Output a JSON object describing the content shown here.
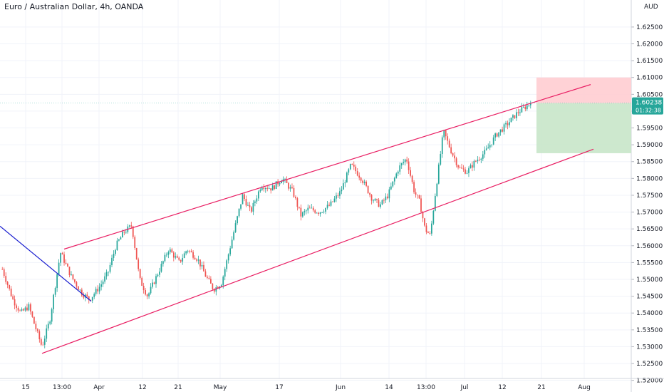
{
  "header": {
    "title": "Euro / Australian Dollar, 4h, OANDA"
  },
  "price_axis": {
    "unit": "AUD"
  },
  "price_tag": {
    "price": "1.60238",
    "countdown": "01:32:38"
  },
  "colors": {
    "up": "#26a69a",
    "down": "#ef5350",
    "channel": "#e91e63",
    "trend": "#1a1ecf",
    "stop_zone": "#ffcdd2",
    "target_zone": "#c8e6c9",
    "tag": "#26a69a",
    "grid": "#f0f3fa",
    "axis": "#131722"
  },
  "chart_data": {
    "type": "candlestick",
    "title": "Euro / Australian Dollar, 4h, OANDA",
    "ylabel": "AUD",
    "ylim": [
      1.5195,
      1.629
    ],
    "grid": true,
    "y_ticks": [
      "1.62500",
      "1.62000",
      "1.61500",
      "1.61000",
      "1.60500",
      "1.60000",
      "1.59500",
      "1.59000",
      "1.58500",
      "1.58000",
      "1.57500",
      "1.57000",
      "1.56500",
      "1.56000",
      "1.55500",
      "1.55000",
      "1.54500",
      "1.54000",
      "1.53500",
      "1.53000",
      "1.52500",
      "1.52000"
    ],
    "x_ticks": [
      "15",
      "13:00",
      "Apr",
      "12",
      "21",
      "May",
      "17",
      "Jun",
      "14",
      "13:00",
      "Jul",
      "12",
      "21",
      "Aug"
    ],
    "price_path": {
      "start": 1.552,
      "end_close": 1.60238,
      "points": [
        [
          0.0,
          1.553
        ],
        [
          0.02,
          1.544
        ],
        [
          0.035,
          1.54
        ],
        [
          0.05,
          1.542
        ],
        [
          0.06,
          1.537
        ],
        [
          0.075,
          1.53
        ],
        [
          0.09,
          1.538
        ],
        [
          0.11,
          1.558
        ],
        [
          0.13,
          1.551
        ],
        [
          0.15,
          1.546
        ],
        [
          0.165,
          1.544
        ],
        [
          0.185,
          1.548
        ],
        [
          0.2,
          1.552
        ],
        [
          0.215,
          1.56
        ],
        [
          0.23,
          1.564
        ],
        [
          0.245,
          1.566
        ],
        [
          0.26,
          1.55
        ],
        [
          0.275,
          1.545
        ],
        [
          0.295,
          1.552
        ],
        [
          0.315,
          1.559
        ],
        [
          0.335,
          1.555
        ],
        [
          0.35,
          1.559
        ],
        [
          0.37,
          1.556
        ],
        [
          0.385,
          1.551
        ],
        [
          0.4,
          1.547
        ],
        [
          0.415,
          1.549
        ],
        [
          0.435,
          1.562
        ],
        [
          0.455,
          1.575
        ],
        [
          0.47,
          1.57
        ],
        [
          0.49,
          1.578
        ],
        [
          0.51,
          1.577
        ],
        [
          0.53,
          1.58
        ],
        [
          0.55,
          1.576
        ],
        [
          0.565,
          1.569
        ],
        [
          0.58,
          1.571
        ],
        [
          0.6,
          1.57
        ],
        [
          0.62,
          1.572
        ],
        [
          0.64,
          1.576
        ],
        [
          0.66,
          1.584
        ],
        [
          0.68,
          1.58
        ],
        [
          0.7,
          1.574
        ],
        [
          0.715,
          1.572
        ],
        [
          0.73,
          1.575
        ],
        [
          0.75,
          1.583
        ],
        [
          0.765,
          1.586
        ],
        [
          0.78,
          1.576
        ],
        [
          0.79,
          1.573
        ],
        [
          0.8,
          1.565
        ],
        [
          0.81,
          1.563
        ],
        [
          0.82,
          1.576
        ],
        [
          0.835,
          1.594
        ],
        [
          0.85,
          1.588
        ],
        [
          0.865,
          1.583
        ],
        [
          0.88,
          1.582
        ],
        [
          0.895,
          1.585
        ],
        [
          0.915,
          1.588
        ],
        [
          0.935,
          1.593
        ],
        [
          0.955,
          1.596
        ],
        [
          0.975,
          1.5995
        ],
        [
          1.0,
          1.60238
        ]
      ]
    },
    "channel_upper": {
      "x": [
        "Mar 16",
        "Jul 28"
      ],
      "y": [
        1.559,
        1.6079
      ]
    },
    "channel_lower": {
      "x": [
        "Mar 17",
        "Jul 28"
      ],
      "y": [
        1.528,
        1.5887
      ]
    },
    "trendline": {
      "y_start": 1.5658,
      "y_end": 1.5435
    },
    "position": {
      "entry": 1.60238,
      "stop": 1.61,
      "target": 1.5875
    }
  }
}
